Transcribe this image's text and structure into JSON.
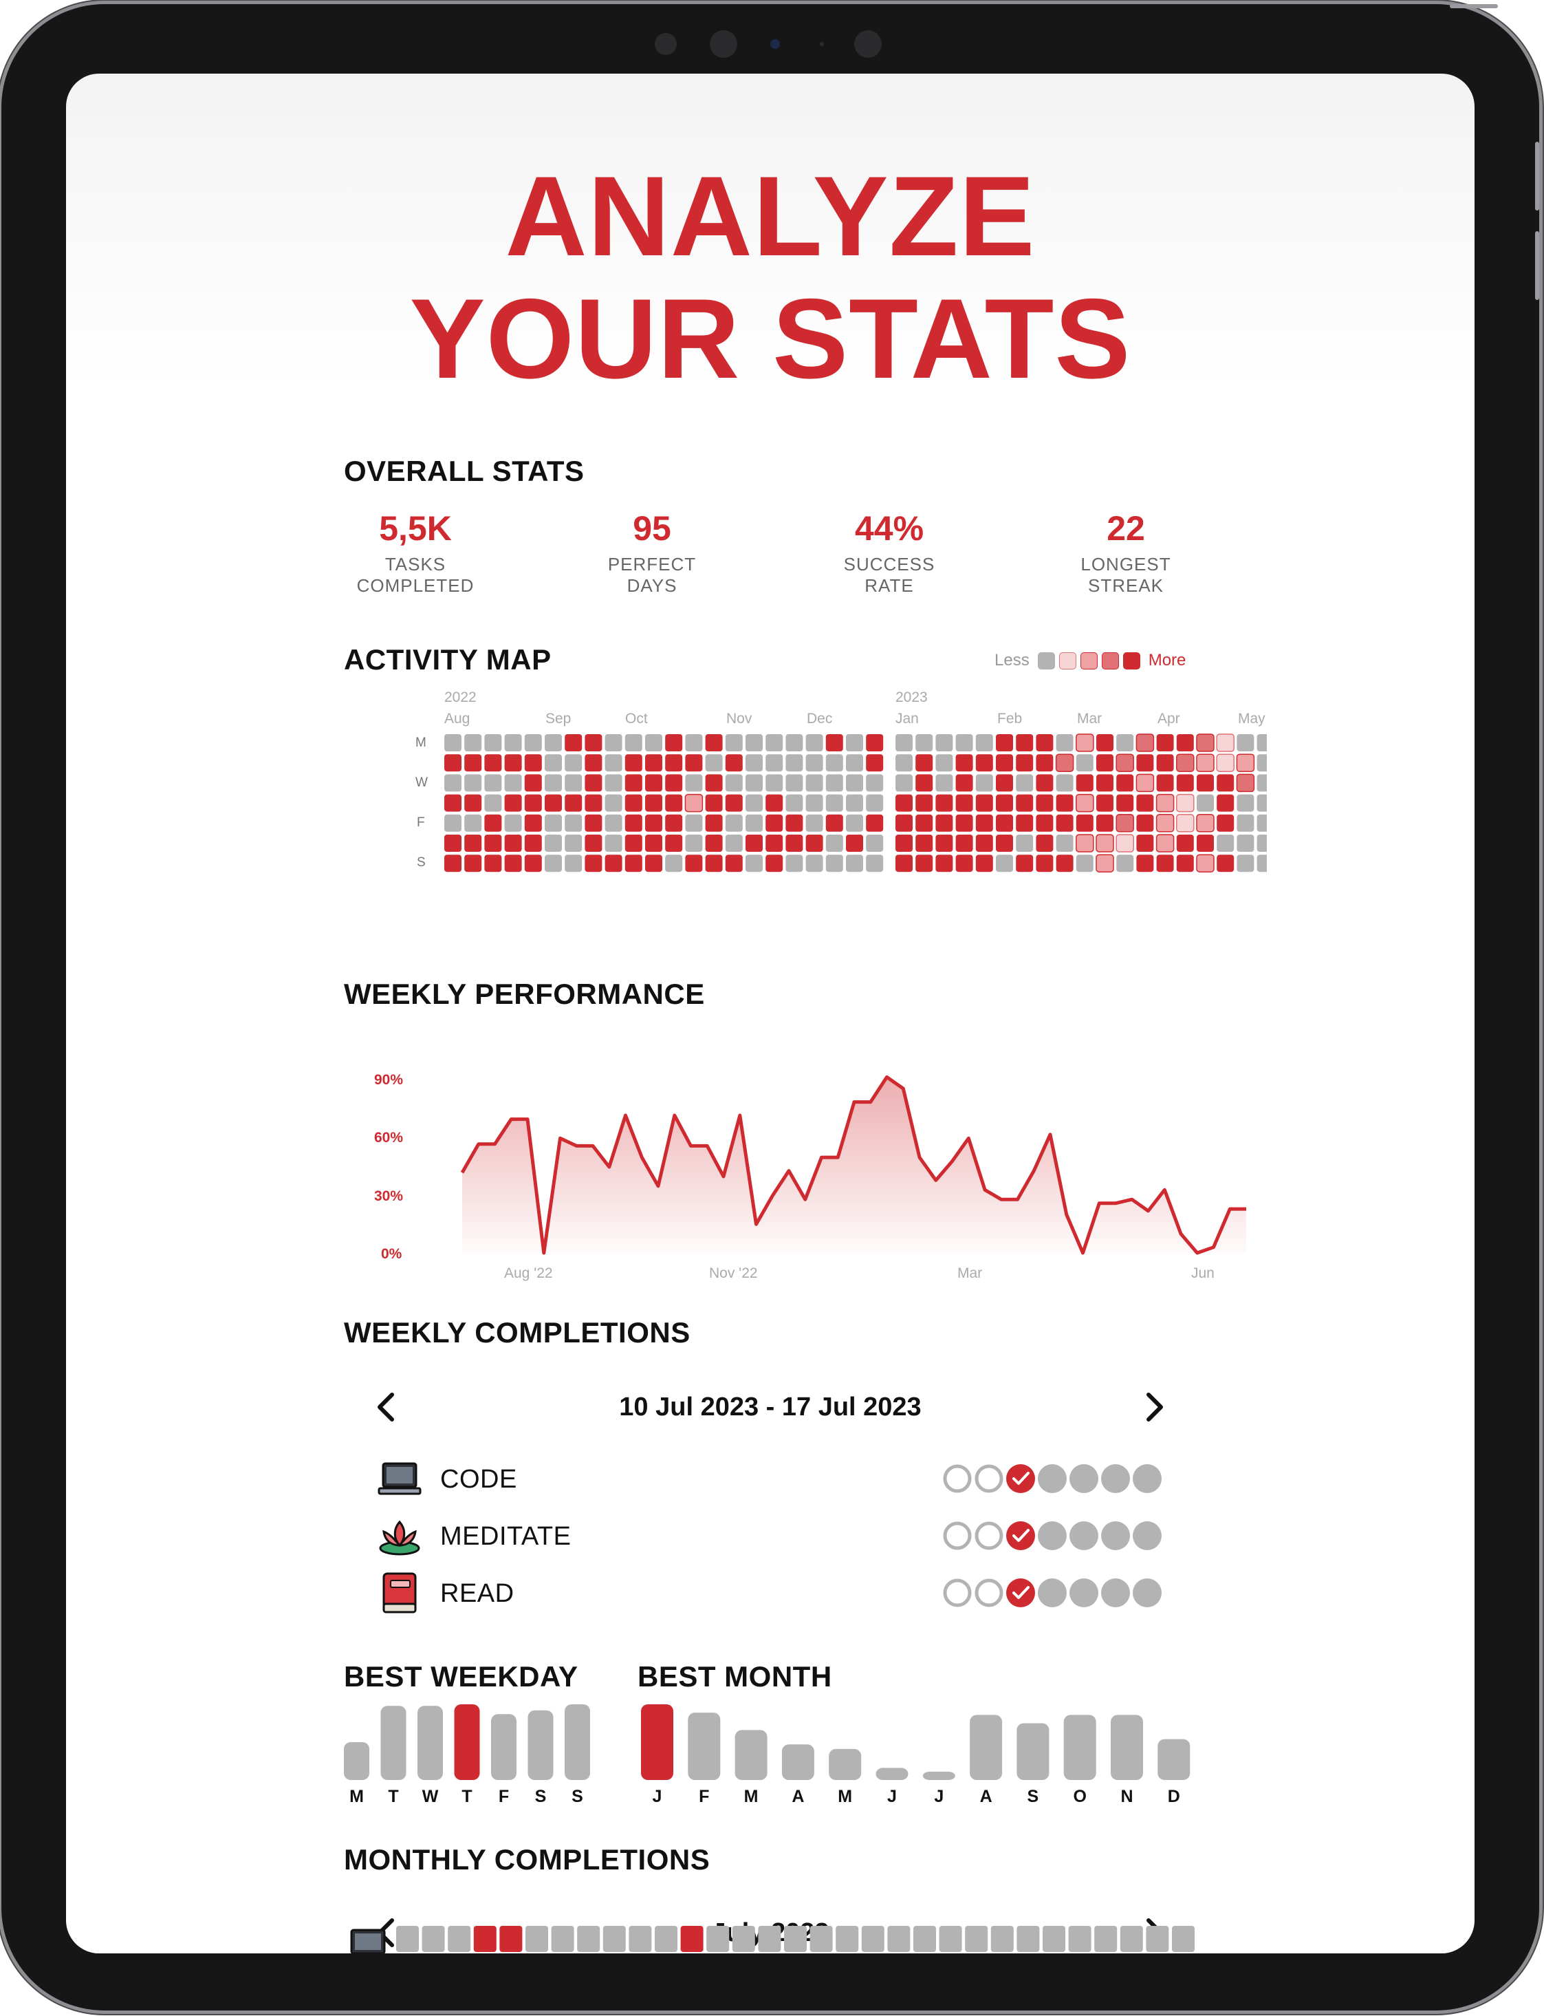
{
  "headline": {
    "line1": "ANALYZE",
    "line2": "YOUR STATS"
  },
  "colors": {
    "accent": "#cf2a2f",
    "inactive": "#b3b3b3",
    "levels": [
      "#b3b3b3",
      "#f6d5d6",
      "#efa3a5",
      "#e07175",
      "#cf2a2f"
    ]
  },
  "overall_stats": {
    "title": "OVERALL STATS",
    "items": [
      {
        "value": "5,5K",
        "label1": "TASKS",
        "label2": "COMPLETED"
      },
      {
        "value": "95",
        "label1": "PERFECT",
        "label2": "DAYS"
      },
      {
        "value": "44%",
        "label1": "SUCCESS",
        "label2": "RATE"
      },
      {
        "value": "22",
        "label1": "LONGEST",
        "label2": "STREAK"
      }
    ]
  },
  "activity_map": {
    "title": "ACTIVITY MAP",
    "legend_less": "Less",
    "legend_more": "More",
    "years": [
      "2022",
      "2023"
    ],
    "months": [
      "Aug",
      "Sep",
      "Oct",
      "Nov",
      "Dec",
      "Jan",
      "Feb",
      "Mar",
      "Apr",
      "May"
    ],
    "day_labels": [
      "M",
      "W",
      "F",
      "S"
    ],
    "grid_2022": [
      "0000004400040400000404",
      "4444400404444040000004",
      "0000400404440400000000",
      "4404444404442440400000",
      "0040400404440400440404",
      "4444400404440404444040",
      "4444400444404440400000"
    ],
    "grid_2023": [
      "000004440240344310000000000000",
      "040444443043443212000000000000",
      "040404040444244443000000000000",
      "444444444244421040000000000000",
      "444444444443421240000000000000",
      "444444040221424400000000000000",
      "444440444020444240000000000000"
    ]
  },
  "weekly_performance": {
    "title": "WEEKLY PERFORMANCE",
    "chart_data": {
      "type": "area",
      "y_ticks": [
        "90%",
        "60%",
        "30%",
        "0%"
      ],
      "x_ticks": [
        "Aug '22",
        "Nov '22",
        "Mar",
        "Jun"
      ],
      "ylim": [
        0,
        100
      ],
      "values": [
        42,
        57,
        57,
        70,
        70,
        0,
        60,
        56,
        56,
        45,
        72,
        50,
        35,
        72,
        56,
        56,
        40,
        72,
        15,
        30,
        43,
        28,
        50,
        50,
        79,
        79,
        92,
        86,
        50,
        38,
        48,
        60,
        33,
        28,
        28,
        43,
        62,
        20,
        0,
        26,
        26,
        28,
        22,
        33,
        10,
        0,
        3,
        23,
        23
      ]
    }
  },
  "weekly_completions": {
    "title": "WEEKLY COMPLETIONS",
    "range": "10 Jul 2023 - 17 Jul 2023",
    "habits": [
      {
        "name": "CODE",
        "icon": "laptop-icon",
        "days": [
          "open",
          "open",
          "done",
          "future",
          "future",
          "future",
          "future"
        ]
      },
      {
        "name": "MEDITATE",
        "icon": "lotus-icon",
        "days": [
          "open",
          "open",
          "done",
          "future",
          "future",
          "future",
          "future"
        ]
      },
      {
        "name": "READ",
        "icon": "book-icon",
        "days": [
          "open",
          "open",
          "done",
          "future",
          "future",
          "future",
          "future"
        ]
      }
    ]
  },
  "best_weekday": {
    "title": "BEST WEEKDAY",
    "chart_data": {
      "type": "bar",
      "categories": [
        "M",
        "T",
        "W",
        "T",
        "F",
        "S",
        "S"
      ],
      "values": [
        50,
        98,
        98,
        100,
        87,
        92,
        100
      ],
      "highlight_index": 3
    }
  },
  "best_month": {
    "title": "BEST MONTH",
    "chart_data": {
      "type": "bar",
      "categories": [
        "J",
        "F",
        "M",
        "A",
        "M",
        "J",
        "J",
        "A",
        "S",
        "O",
        "N",
        "D"
      ],
      "values": [
        100,
        89,
        66,
        47,
        41,
        16,
        11,
        86,
        75,
        86,
        86,
        54
      ],
      "highlight_index": 0
    }
  },
  "monthly_completions": {
    "title": "MONTHLY COMPLETIONS",
    "month": "July 2023",
    "habit_icon": "laptop-icon",
    "days": [
      0,
      0,
      0,
      1,
      1,
      0,
      0,
      0,
      0,
      0,
      0,
      1,
      0,
      0,
      0,
      0,
      0,
      0,
      0,
      0,
      0,
      0,
      0,
      0,
      0,
      0,
      0,
      0,
      0,
      0,
      0
    ]
  }
}
